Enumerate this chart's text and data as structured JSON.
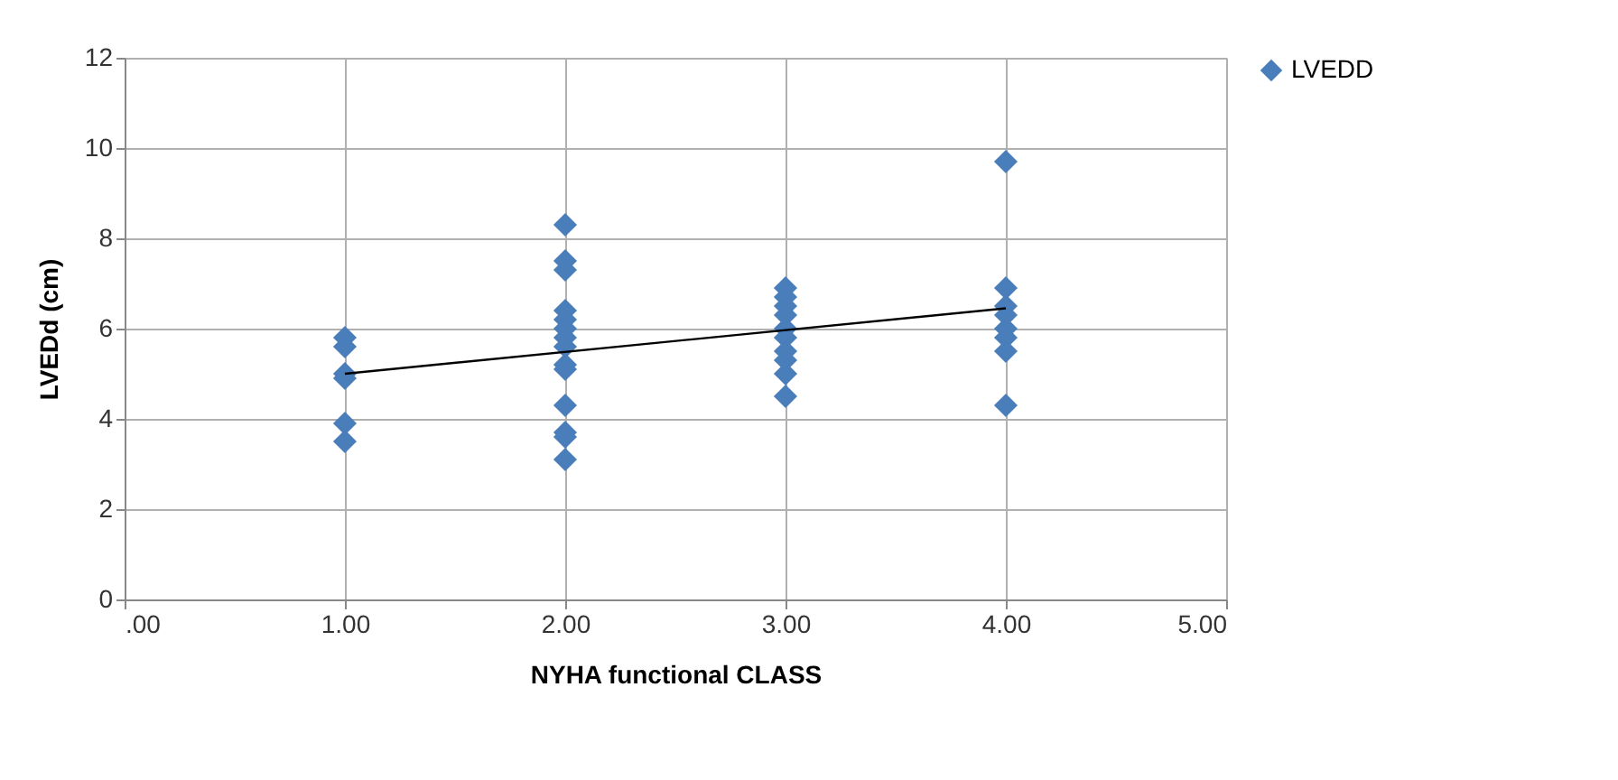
{
  "chart_data": {
    "type": "scatter",
    "xlabel": "NYHA  functional CLASS",
    "ylabel": "LVEDd (cm)",
    "xlim": [
      0,
      5
    ],
    "xticks": [
      {
        "value": 0,
        "label": ".00"
      },
      {
        "value": 1,
        "label": "1.00"
      },
      {
        "value": 2,
        "label": "2.00"
      },
      {
        "value": 3,
        "label": "3.00"
      },
      {
        "value": 4,
        "label": "4.00"
      },
      {
        "value": 5,
        "label": "5.00"
      }
    ],
    "ylim": [
      0,
      12
    ],
    "yticks": [
      0,
      2,
      4,
      6,
      8,
      10,
      12
    ],
    "grid": true,
    "legend": "right",
    "marker": "diamond",
    "series": [
      {
        "name": "LVEDD",
        "color": "#4a7ebb",
        "x": [
          1,
          1,
          1,
          1,
          1,
          1,
          2,
          2,
          2,
          2,
          2,
          2,
          2,
          2,
          2,
          2,
          2,
          2,
          2,
          2,
          3,
          3,
          3,
          3,
          3,
          3,
          3,
          3,
          3,
          3,
          4,
          4,
          4,
          4,
          4,
          4,
          4,
          4
        ],
        "values": [
          5.8,
          5.6,
          5.0,
          4.9,
          3.9,
          3.5,
          8.3,
          7.5,
          7.3,
          6.4,
          6.2,
          6.0,
          5.8,
          5.6,
          5.2,
          5.1,
          4.3,
          3.7,
          3.6,
          3.1,
          6.9,
          6.7,
          6.5,
          6.3,
          6.0,
          5.8,
          5.5,
          5.3,
          5.0,
          4.5,
          9.7,
          6.9,
          6.5,
          6.3,
          6.0,
          5.8,
          5.5,
          4.3
        ]
      },
      {
        "type": "line",
        "color": "#000000",
        "marker": "none",
        "x": [
          1,
          4
        ],
        "values": [
          5.0,
          6.45
        ]
      }
    ]
  }
}
